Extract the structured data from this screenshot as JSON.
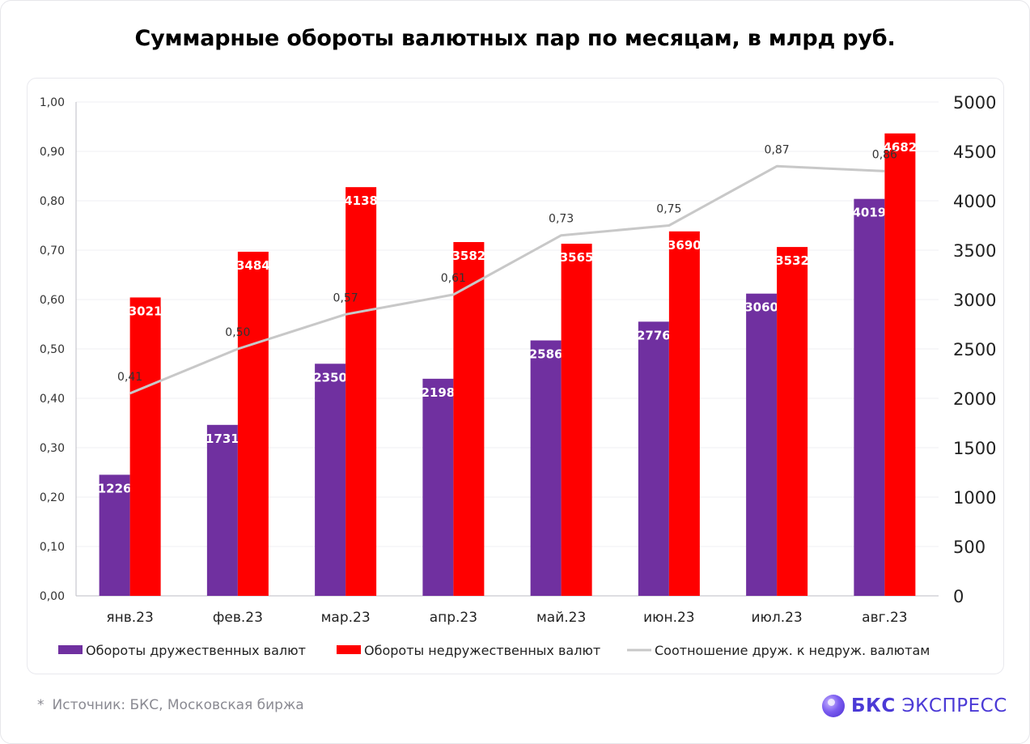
{
  "title": "Суммарные обороты валютных пар по месяцам, в млрд руб.",
  "footnote": {
    "star": "*",
    "text": "Источник: БКС, Московская биржа"
  },
  "logo": {
    "strong": "БКС",
    "rest": "ЭКСПРЕСС",
    "color": "#4b3ad6"
  },
  "chart_data": {
    "type": "bar",
    "title": "Суммарные обороты валютных пар по месяцам, в млрд руб.",
    "categories": [
      "янв.23",
      "фев.23",
      "мар.23",
      "апр.23",
      "май.23",
      "июн.23",
      "июл.23",
      "авг.23"
    ],
    "series": [
      {
        "name": "Обороты дружественных валют",
        "type": "bar",
        "axis": "right",
        "color": "#7030a0",
        "values": [
          1226,
          1731,
          2350,
          2198,
          2586,
          2776,
          3060,
          4019
        ],
        "labels": [
          "1226",
          "1731",
          "2350",
          "2198",
          "2586",
          "2776",
          "3060",
          "4019"
        ]
      },
      {
        "name": "Обороты недружественных валют",
        "type": "bar",
        "axis": "right",
        "color": "#ff0000",
        "values": [
          3021,
          3484,
          4138,
          3582,
          3565,
          3690,
          3532,
          4682
        ],
        "labels": [
          "3021",
          "3484",
          "4138",
          "3582",
          "3565",
          "3690",
          "3532",
          "4682"
        ]
      },
      {
        "name": "Соотношение друж. к недруж. валютам",
        "type": "line",
        "axis": "left",
        "color": "#c8c8c8",
        "values": [
          0.41,
          0.5,
          0.57,
          0.61,
          0.73,
          0.75,
          0.87,
          0.86
        ],
        "labels": [
          "0,41",
          "0,50",
          "0,57",
          "0,61",
          "0,73",
          "0,75",
          "0,87",
          "0,86"
        ]
      }
    ],
    "left_axis": {
      "ylim": [
        0,
        1
      ],
      "ticks": [
        "0,00",
        "0,10",
        "0,20",
        "0,30",
        "0,40",
        "0,50",
        "0,60",
        "0,70",
        "0,80",
        "0,90",
        "1,00"
      ]
    },
    "right_axis": {
      "ylim": [
        0,
        5000
      ],
      "ticks": [
        "0",
        "500",
        "1000",
        "1500",
        "2000",
        "2500",
        "3000",
        "3500",
        "4000",
        "4500",
        "5000"
      ]
    },
    "grid": true,
    "legend_position": "bottom"
  }
}
